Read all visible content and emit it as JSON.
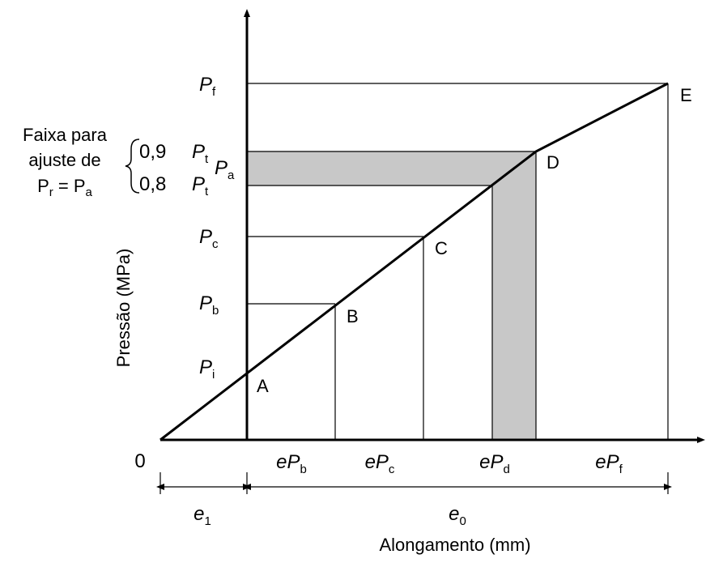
{
  "diagram": {
    "y_axis_label": "Pressão (MPa)",
    "x_axis_label": "Alongamento (mm)",
    "origin_label": "0",
    "y_ticks": [
      {
        "base": "P",
        "sub": "f"
      },
      {
        "base": "P",
        "sub": "c"
      },
      {
        "base": "P",
        "sub": "b"
      },
      {
        "base": "P",
        "sub": "i"
      }
    ],
    "band": {
      "caption_line1": "Faixa para",
      "caption_line2": "ajuste de",
      "caption_line3_base": "P",
      "caption_line3_sub1": "r",
      "caption_line3_mid": " = P",
      "caption_line3_sub2": "a",
      "upper_factor": "0,9",
      "lower_factor": "0,8",
      "tick_base": "P",
      "tick_sub": "t",
      "pa_base": "P",
      "pa_sub": "a"
    },
    "points": [
      "A",
      "B",
      "C",
      "D",
      "E"
    ],
    "x_segments": [
      {
        "base": "eP",
        "sub": "b"
      },
      {
        "base": "eP",
        "sub": "c"
      },
      {
        "base": "eP",
        "sub": "d"
      },
      {
        "base": "eP",
        "sub": "f"
      }
    ],
    "dimensions": [
      {
        "base": "e",
        "sub": "1"
      },
      {
        "base": "e",
        "sub": "0"
      }
    ]
  }
}
